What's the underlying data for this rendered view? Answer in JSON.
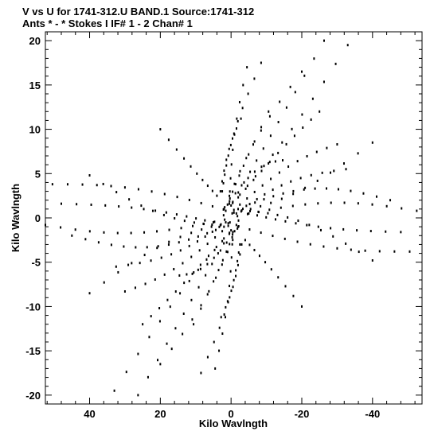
{
  "header": {
    "line1": "V vs U for 1741-312.U BAND.1   Source:1741-312",
    "line2": "Ants * - *     Stokes I   IF# 1 - 2   Chan# 1"
  },
  "chart_data": {
    "type": "scatter",
    "title": "V vs U for 1741-312.U BAND.1   Source:1741-312",
    "subtitle": "Ants * - *     Stokes I   IF# 1 - 2   Chan# 1",
    "xlabel": "Kilo Wavlngth",
    "ylabel": "Kilo Wavlngth",
    "xlim": [
      52.5,
      -54
    ],
    "ylim": [
      -21,
      21
    ],
    "x_reversed": true,
    "x_ticks": [
      40,
      20,
      0,
      -20,
      -40
    ],
    "x_tick_labels": [
      "40",
      "20",
      "0",
      "-20",
      "-40"
    ],
    "y_ticks": [
      -20,
      -15,
      -10,
      -5,
      0,
      5,
      10,
      15,
      20
    ],
    "y_tick_labels": [
      "-20",
      "-15",
      "-10",
      "-5",
      "0",
      "5",
      "10",
      "15",
      "20"
    ],
    "grid": false,
    "marker": "dot",
    "color": "#000000",
    "point_symmetric": true,
    "arms": [
      {
        "start": [
          -0.5,
          1.8
        ],
        "end": [
          -26.3,
          20.0
        ],
        "points": 13,
        "bow": [
          0.6,
          -0.5
        ]
      },
      {
        "start": [
          1.0,
          1.5
        ],
        "end": [
          -10.6,
          12.0
        ],
        "points": 10,
        "bow": [
          1.2,
          -0.8
        ]
      },
      {
        "start": [
          1.5,
          0.8
        ],
        "end": [
          -33.0,
          19.5
        ],
        "points": 14,
        "bow": [
          0.5,
          -1.2
        ]
      },
      {
        "start": [
          2.1,
          0.3
        ],
        "end": [
          -40.0,
          8.5
        ],
        "points": 14,
        "bow": [
          0.4,
          -1.5
        ]
      },
      {
        "start": [
          0.0,
          1.4
        ],
        "end": [
          -25.0,
          12.0
        ],
        "points": 12,
        "bow": [
          -1.2,
          0.8
        ]
      },
      {
        "start": [
          -1.8,
          0.2
        ],
        "end": [
          -52.5,
          0.8
        ],
        "points": 15,
        "bow": [
          -0.6,
          1.2
        ]
      },
      {
        "start": [
          -1.5,
          0.5
        ],
        "end": [
          -32.5,
          5.5
        ],
        "points": 13,
        "bow": [
          0.8,
          1.0
        ]
      },
      {
        "start": [
          0.8,
          -0.6
        ],
        "end": [
          -50.5,
          -3.8
        ],
        "points": 15,
        "bow": [
          -0.8,
          -1.0
        ]
      },
      {
        "start": [
          1.8,
          1.2
        ],
        "end": [
          -20.0,
          16.5
        ],
        "points": 11,
        "bow": [
          1.5,
          0.4
        ]
      },
      {
        "start": [
          0.5,
          1.6
        ],
        "end": [
          -4.5,
          17.0
        ],
        "points": 10,
        "bow": [
          1.0,
          0.2
        ]
      },
      {
        "start": [
          -2.0,
          1.0
        ],
        "end": [
          -45.0,
          2.0
        ],
        "points": 15,
        "bow": [
          0.2,
          1.8
        ]
      },
      {
        "start": [
          -0.8,
          0.9
        ],
        "end": [
          -40.0,
          -4.8
        ],
        "points": 14,
        "bow": [
          0.5,
          1.5
        ]
      },
      {
        "start": [
          2.0,
          1.0
        ],
        "end": [
          -14.6,
          6.5
        ],
        "points": 10,
        "bow": [
          -0.5,
          1.5
        ]
      },
      {
        "start": [
          -2.5,
          1.5
        ],
        "end": [
          -30.0,
          8.3
        ],
        "points": 12,
        "bow": [
          -0.4,
          1.0
        ]
      },
      {
        "start": [
          -4.0,
          -2.5
        ],
        "end": [
          -20.0,
          -10.0
        ],
        "points": 10,
        "bow": [
          0.5,
          0.4
        ]
      },
      {
        "start": [
          -5.0,
          0.5
        ],
        "end": [
          -48.0,
          -1.6
        ],
        "points": 14,
        "bow": [
          0.8,
          -0.5
        ]
      },
      {
        "start": [
          2.5,
          3.0
        ],
        "end": [
          -8.5,
          17.5
        ],
        "points": 12,
        "bow": [
          2.0,
          -0.5
        ]
      },
      {
        "start": [
          3.0,
          3.0
        ],
        "end": [
          -2.8,
          11.2
        ],
        "points": 8,
        "bow": [
          0.5,
          0.6
        ]
      }
    ]
  }
}
